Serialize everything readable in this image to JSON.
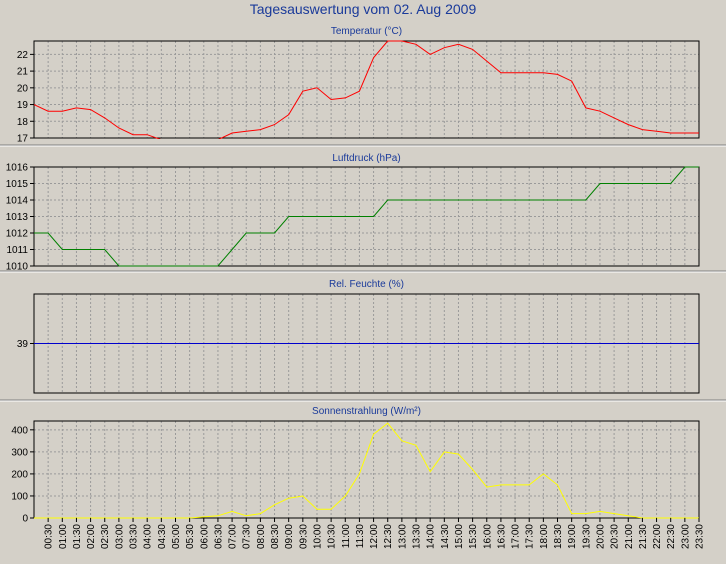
{
  "title": "Tagesauswertung vom 02. Aug 2009",
  "x_labels": [
    "00:30",
    "01:00",
    "01:30",
    "02:00",
    "02:30",
    "03:00",
    "03:30",
    "04:00",
    "04:30",
    "05:00",
    "05:30",
    "06:00",
    "06:30",
    "07:00",
    "07:30",
    "08:00",
    "08:30",
    "09:00",
    "09:30",
    "10:00",
    "10:30",
    "11:00",
    "11:30",
    "12:00",
    "12:30",
    "13:00",
    "13:30",
    "14:00",
    "14:30",
    "15:00",
    "15:30",
    "16:00",
    "16:30",
    "17:00",
    "17:30",
    "18:00",
    "18:30",
    "19:00",
    "19:30",
    "20:00",
    "20:30",
    "21:00",
    "21:30",
    "22:00",
    "22:30",
    "23:00",
    "23:30"
  ],
  "colors": {
    "background": "#d4d0c8",
    "plot_background": "#d4d0c8",
    "grid": "#9a9a9a",
    "axis": "#000000",
    "title": "#1a3a9a"
  },
  "chart_data": [
    {
      "type": "line",
      "title": "Temperatur (°C)",
      "ylim": [
        17,
        22.8
      ],
      "yticks": [
        17,
        18,
        19,
        20,
        21,
        22
      ],
      "grid": true,
      "series": [
        {
          "color": "#ff0000",
          "x": [
            0,
            0.5,
            1,
            1.5,
            2,
            2.5,
            3,
            3.5,
            4,
            4.5,
            5,
            5.5,
            6,
            6.5,
            7,
            7.5,
            8,
            8.5,
            9,
            9.5,
            10,
            10.5,
            11,
            11.5,
            12,
            12.5,
            13,
            13.5,
            14,
            14.5,
            15,
            15.5,
            16,
            16.5,
            17,
            17.5,
            18,
            18.5,
            19,
            19.5,
            20,
            20.5,
            21,
            21.5,
            22,
            22.5,
            23,
            23.5
          ],
          "values": [
            19.0,
            18.6,
            18.6,
            18.8,
            18.7,
            18.2,
            17.6,
            17.2,
            17.2,
            16.9,
            16.9,
            16.9,
            16.9,
            16.9,
            17.3,
            17.4,
            17.5,
            17.8,
            18.4,
            19.8,
            20.0,
            19.3,
            19.4,
            19.8,
            21.8,
            22.8,
            22.8,
            22.6,
            22.0,
            22.4,
            22.6,
            22.3,
            21.6,
            20.9,
            20.9,
            20.9,
            20.9,
            20.8,
            20.4,
            18.8,
            18.6,
            18.2,
            17.8,
            17.5,
            17.4,
            17.3,
            17.3,
            17.3
          ]
        }
      ]
    },
    {
      "type": "line",
      "title": "Luftdruck (hPa)",
      "ylim": [
        1010,
        1016
      ],
      "yticks": [
        1010,
        1011,
        1012,
        1013,
        1014,
        1015,
        1016
      ],
      "grid": true,
      "series": [
        {
          "color": "#008000",
          "x": [
            0,
            0.5,
            1,
            1.5,
            2,
            2.5,
            3,
            3.5,
            4,
            4.5,
            5,
            5.5,
            6,
            6.5,
            7,
            7.5,
            8,
            8.5,
            9,
            9.5,
            10,
            10.5,
            11,
            11.5,
            12,
            12.5,
            13,
            13.5,
            14,
            14.5,
            15,
            15.5,
            16,
            16.5,
            17,
            17.5,
            18,
            18.5,
            19,
            19.5,
            20,
            20.5,
            21,
            21.5,
            22,
            22.5,
            23,
            23.5
          ],
          "values": [
            1012,
            1012,
            1011,
            1011,
            1011,
            1011,
            1010,
            1010,
            1010,
            1010,
            1010,
            1010,
            1010,
            1010,
            1011,
            1012,
            1012,
            1012,
            1013,
            1013,
            1013,
            1013,
            1013,
            1013,
            1013,
            1014,
            1014,
            1014,
            1014,
            1014,
            1014,
            1014,
            1014,
            1014,
            1014,
            1014,
            1014,
            1014,
            1014,
            1014,
            1015,
            1015,
            1015,
            1015,
            1015,
            1015,
            1016,
            1016
          ]
        }
      ]
    },
    {
      "type": "line",
      "title": "Rel. Feuchte (%)",
      "ylim": [
        34,
        44
      ],
      "yticks": [
        39
      ],
      "grid": true,
      "series": [
        {
          "color": "#0000cc",
          "x": [
            0,
            23.5
          ],
          "values": [
            39,
            39
          ]
        }
      ]
    },
    {
      "type": "line",
      "title": "Sonnenstrahlung (W/m²)",
      "ylim": [
        0,
        440
      ],
      "yticks": [
        0,
        100,
        200,
        300,
        400
      ],
      "grid": true,
      "series": [
        {
          "color": "#ffff00",
          "x": [
            0,
            0.5,
            1,
            1.5,
            2,
            2.5,
            3,
            3.5,
            4,
            4.5,
            5,
            5.5,
            6,
            6.5,
            7,
            7.5,
            8,
            8.5,
            9,
            9.5,
            10,
            10.5,
            11,
            11.5,
            12,
            12.5,
            13,
            13.5,
            14,
            14.5,
            15,
            15.5,
            16,
            16.5,
            17,
            17.5,
            18,
            18.5,
            19,
            19.5,
            20,
            20.5,
            21,
            21.5,
            22,
            22.5,
            23,
            23.5
          ],
          "values": [
            0,
            0,
            0,
            0,
            0,
            0,
            0,
            0,
            0,
            0,
            0,
            0,
            5,
            10,
            30,
            10,
            20,
            60,
            90,
            100,
            40,
            40,
            100,
            200,
            380,
            430,
            350,
            330,
            210,
            300,
            290,
            220,
            140,
            150,
            150,
            150,
            200,
            150,
            20,
            20,
            30,
            20,
            10,
            0,
            0,
            0,
            0,
            0
          ]
        }
      ]
    }
  ]
}
